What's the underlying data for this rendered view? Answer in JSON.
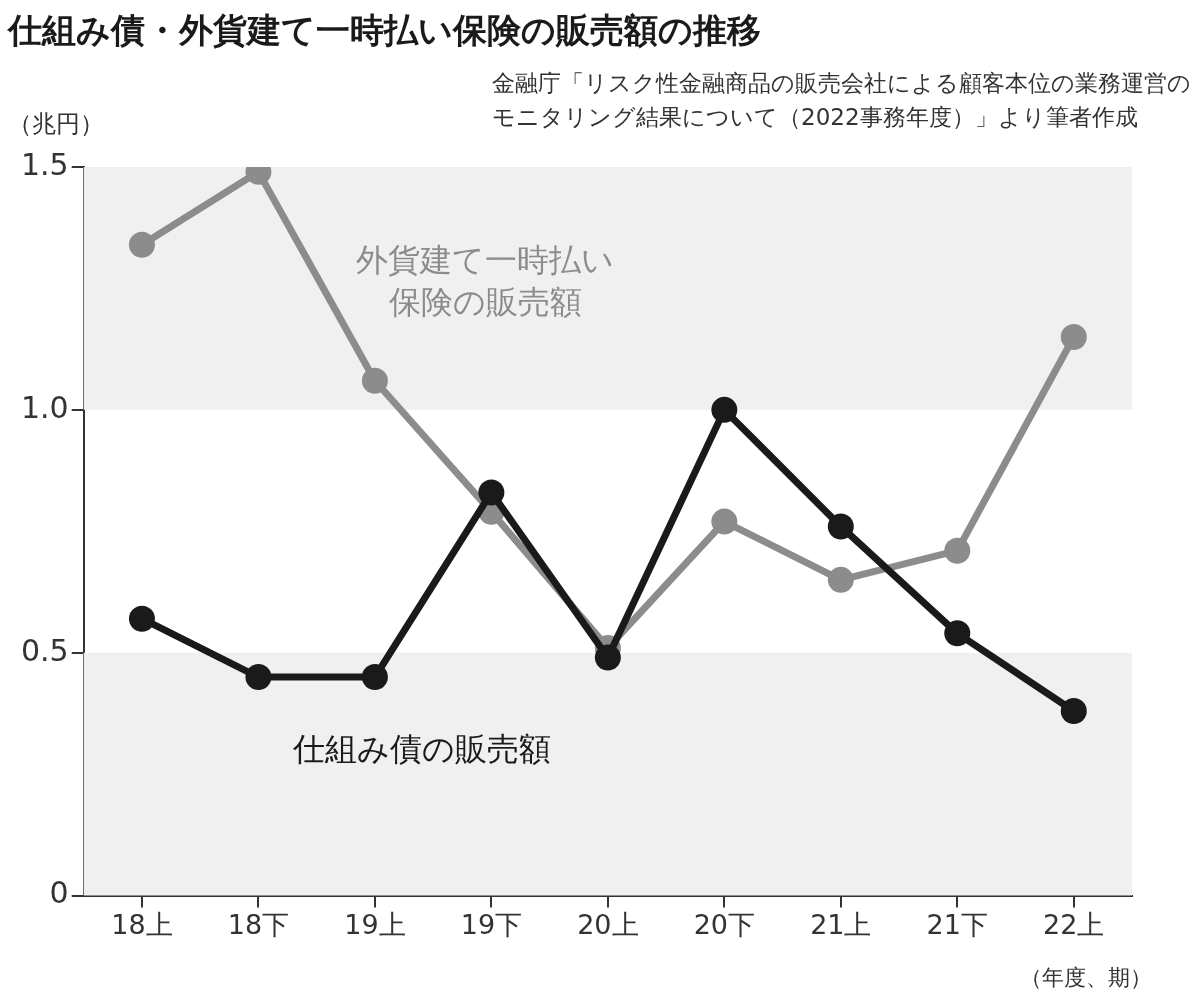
{
  "chart_data": {
    "type": "line",
    "title": "仕組み債・外貨建て一時払い保険の販売額の推移",
    "annotations": [
      "金融庁「リスク性金融商品の販売会社による顧客本位の業務運営のモニタリング結果について（2022事務年度）」より筆者作成"
    ],
    "ylabel": "（兆円）",
    "xlabel": "（年度、期）",
    "categories": [
      "18上",
      "18下",
      "19上",
      "19下",
      "20上",
      "20下",
      "21上",
      "21下",
      "22上"
    ],
    "series": [
      {
        "name": "外貨建て一時払い保険の販売額",
        "color": "#8c8c8c",
        "values": [
          1.34,
          1.49,
          1.06,
          0.79,
          0.51,
          0.77,
          0.65,
          0.71,
          1.15
        ]
      },
      {
        "name": "仕組み債の販売額",
        "color": "#1a1a1a",
        "values": [
          0.57,
          0.45,
          0.45,
          0.83,
          0.49,
          1.0,
          0.76,
          0.54,
          0.38
        ]
      }
    ],
    "ylim": [
      0,
      1.5
    ],
    "yticks": [
      0,
      0.5,
      {
        "value": 1,
        "label": "1.0"
      },
      1.5
    ],
    "bands": [
      {
        "axis": "y",
        "from": 0,
        "to": 0.5,
        "color": "#f0f0f0"
      },
      {
        "axis": "y",
        "from": 1,
        "to": 1.5,
        "color": "#f0f0f0"
      }
    ],
    "marker": "circle",
    "line_style": "solid"
  }
}
